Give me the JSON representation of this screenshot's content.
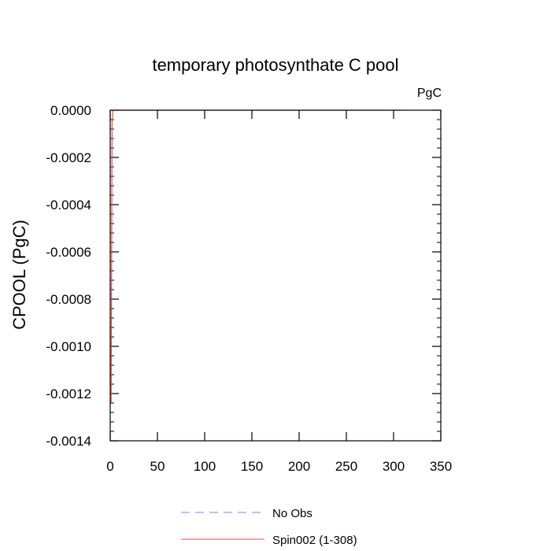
{
  "chart_data": {
    "type": "line",
    "title": "temporary photosynthate C pool",
    "ylabel": "CPOOL  (PgC)",
    "units": "PgC",
    "xlim": [
      0,
      350
    ],
    "ylim": [
      -0.0014,
      0.0
    ],
    "x_ticks": [
      0,
      50,
      100,
      150,
      200,
      250,
      300,
      350
    ],
    "x_tick_labels": [
      "0",
      "50",
      "100",
      "150",
      "200",
      "250",
      "300",
      "350"
    ],
    "y_ticks": [
      0.0,
      -0.0002,
      -0.0004,
      -0.0006,
      -0.0008,
      -0.001,
      -0.0012,
      -0.0014
    ],
    "y_tick_labels": [
      "0.0000",
      "-0.0002",
      "-0.0004",
      "-0.0006",
      "-0.0008",
      "-0.0010",
      "-0.0012",
      "-0.0014"
    ],
    "grid": false,
    "legend_position": "bottom",
    "series": [
      {
        "name": "No Obs",
        "color": "#8080ff",
        "style": "dashed",
        "x": [],
        "y": []
      },
      {
        "name": "Spin002 (1-308)",
        "color": "#e05050",
        "style": "solid",
        "x": [
          1,
          2,
          3,
          5,
          10,
          50,
          100,
          150,
          200,
          250,
          300,
          308
        ],
        "y": [
          -0.00124,
          -5e-05,
          0.0,
          0.0,
          0.0,
          0.0,
          0.0,
          0.0,
          0.0,
          0.0,
          0.0,
          0.0
        ]
      }
    ]
  }
}
